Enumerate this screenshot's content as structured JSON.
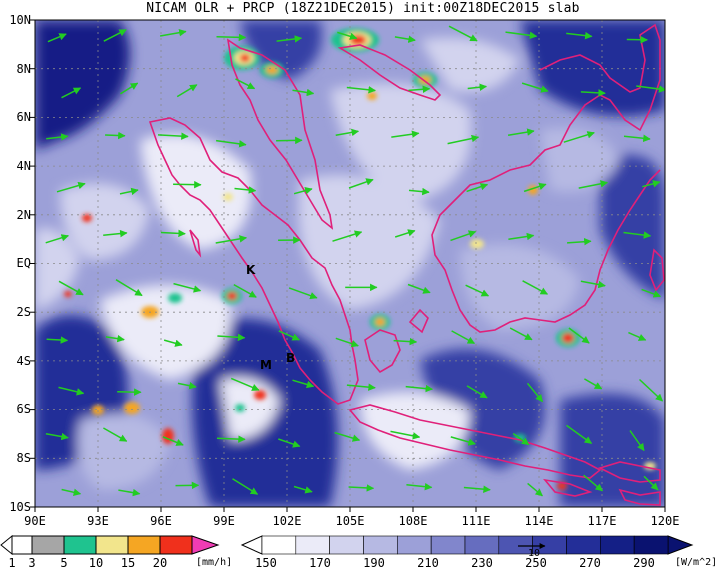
{
  "title": "NICAM OLR + PRCP (18Z21DEC2015) init:00Z18DEC2015 slab",
  "map": {
    "lat_labels": [
      "10N",
      "8N",
      "6N",
      "4N",
      "2N",
      "EQ",
      "2S",
      "4S",
      "6S",
      "8S",
      "10S"
    ],
    "lon_labels": [
      "90E",
      "93E",
      "96E",
      "99E",
      "102E",
      "105E",
      "108E",
      "111E",
      "114E",
      "117E",
      "120E"
    ],
    "station_labels": [
      "K",
      "M",
      "B"
    ],
    "colors": {
      "frame": "#000000",
      "coastline": "#e0207a",
      "wind_vector": "#22cc22",
      "ref_vector": "#000000",
      "grid": "#8a8a8a"
    }
  },
  "precip_colorbar": {
    "ticks": [
      "1",
      "3",
      "5",
      "10",
      "15",
      "20"
    ],
    "unit": "[mm/h]",
    "colors": [
      "#ffffff",
      "#a6a6a6",
      "#1fc38f",
      "#f2e58c",
      "#f5a623",
      "#f0301c",
      "#f03cb4"
    ]
  },
  "olr_colorbar": {
    "ticks": [
      "150",
      "170",
      "190",
      "210",
      "230",
      "250",
      "270",
      "290"
    ],
    "unit": "[W/m^2]",
    "ref_vector_label": "10",
    "colors": [
      "#ffffff",
      "#ebebf8",
      "#d2d3ee",
      "#b6b9e3",
      "#9ca0d8",
      "#8186cc",
      "#666dbf",
      "#4d55b2",
      "#363fa5",
      "#232e98",
      "#141f86",
      "#0a1270"
    ]
  }
}
